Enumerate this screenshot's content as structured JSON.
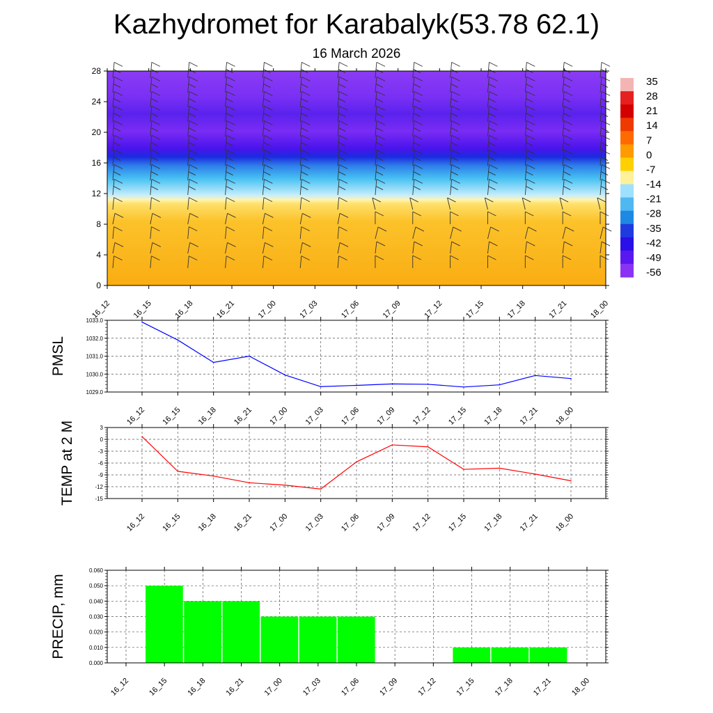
{
  "title": "Kazhydromet for Karabalyk(53.78 62.1)",
  "subtitle": "16 March 2026",
  "chart_data": [
    {
      "type": "heatmap",
      "name": "cross-section",
      "x_labels": [
        "16_12",
        "16_15",
        "16_18",
        "16_21",
        "17_00",
        "17_03",
        "17_06",
        "17_09",
        "17_12",
        "17_15",
        "17_18",
        "17_21",
        "18_00"
      ],
      "ylim": [
        0,
        28
      ],
      "yticks": [
        "0",
        "4",
        "8",
        "12",
        "16",
        "20",
        "24",
        "28"
      ],
      "colorbar": {
        "labels": [
          "35",
          "28",
          "21",
          "14",
          "7",
          "0",
          "-7",
          "-14",
          "-21",
          "-28",
          "-35",
          "-42",
          "-49",
          "-56"
        ],
        "colors": [
          "#f5b4b4",
          "#e52020",
          "#d40000",
          "#ee3a00",
          "#ff6a00",
          "#ff9a00",
          "#ffd000",
          "#fff09a",
          "#9ee0ff",
          "#4fb8f0",
          "#1e88e5",
          "#1f3be0",
          "#2a0fe8",
          "#5a18f0",
          "#8a33f5"
        ]
      },
      "layers": [
        {
          "z_from": 0,
          "z_to": 11,
          "label": "warm",
          "color": "#fcbd1c"
        },
        {
          "z_from": 11,
          "z_to": 17,
          "label": "gradient",
          "color": "#62c5f5"
        },
        {
          "z_from": 17,
          "z_to": 28,
          "label": "cold",
          "color": "#8a3bf5"
        }
      ]
    },
    {
      "type": "line",
      "name": "pmsl",
      "ylabel": "PMSL",
      "color": "#0000ff",
      "ylim": [
        1029.0,
        1033.0
      ],
      "yticks": [
        "1029.0",
        "1030.0",
        "1031.0",
        "1032.0",
        "1033.0"
      ],
      "categories": [
        "16_12",
        "16_15",
        "16_18",
        "16_21",
        "17_00",
        "17_03",
        "17_06",
        "17_09",
        "17_12",
        "17_15",
        "17_18",
        "17_21",
        "18_00"
      ],
      "values": [
        1032.9,
        1031.9,
        1030.65,
        1031.0,
        1029.95,
        1029.3,
        1029.37,
        1029.45,
        1029.43,
        1029.28,
        1029.4,
        1029.92,
        1029.75
      ]
    },
    {
      "type": "line",
      "name": "temp",
      "ylabel": "TEMP at 2 M",
      "color": "#ff0000",
      "ylim": [
        -15,
        3
      ],
      "yticks": [
        "-15",
        "-12",
        "-9",
        "-6",
        "-3",
        "0",
        "3"
      ],
      "categories": [
        "16_12",
        "16_15",
        "16_18",
        "16_21",
        "17_00",
        "17_03",
        "17_06",
        "17_09",
        "17_12",
        "17_15",
        "17_18",
        "17_21",
        "18_00"
      ],
      "values": [
        0.7,
        -8.1,
        -9.3,
        -11.0,
        -11.6,
        -12.6,
        -5.7,
        -1.4,
        -1.9,
        -7.6,
        -7.3,
        -8.8,
        -10.5
      ]
    },
    {
      "type": "bar",
      "name": "precip",
      "ylabel": "PRECIP, mm",
      "color": "#00ff00",
      "ylim": [
        0,
        0.06
      ],
      "yticks": [
        "0.000",
        "0.010",
        "0.020",
        "0.030",
        "0.040",
        "0.050",
        "0.060"
      ],
      "categories": [
        "16_12",
        "16_15",
        "16_18",
        "16_21",
        "17_00",
        "17_03",
        "17_06",
        "17_09",
        "17_12",
        "17_15",
        "17_18",
        "17_21",
        "18_00"
      ],
      "values": [
        0,
        0.05,
        0.04,
        0.04,
        0.03,
        0.03,
        0.03,
        0,
        0,
        0.01,
        0.01,
        0.01,
        0
      ]
    }
  ]
}
